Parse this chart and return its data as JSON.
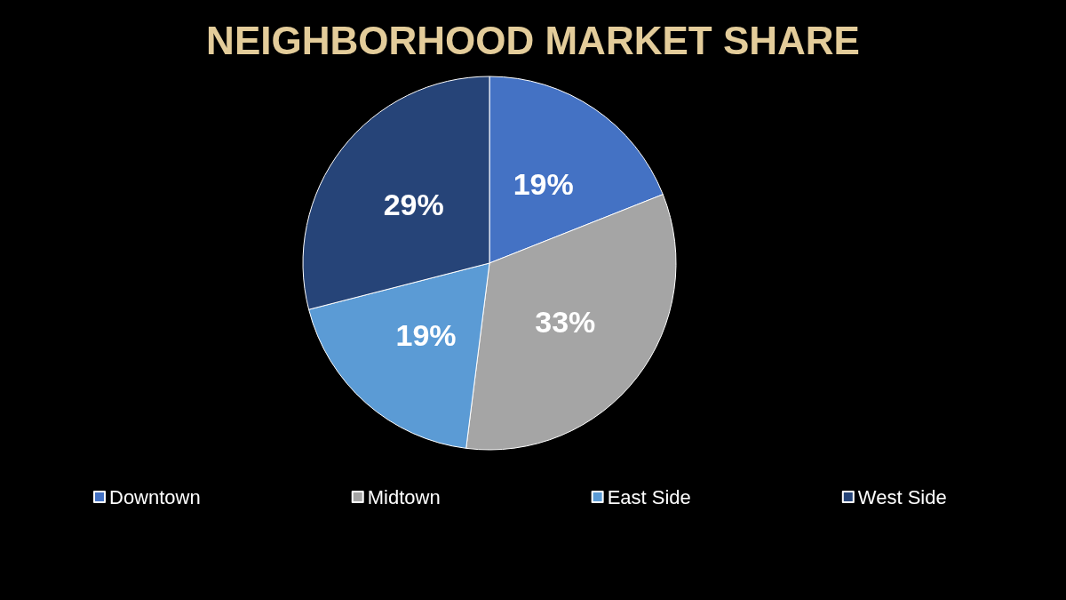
{
  "chart_data": {
    "type": "pie",
    "title": "NEIGHBORHOOD MARKET SHARE",
    "categories": [
      "Downtown",
      "Midtown",
      "East Side",
      "West Side"
    ],
    "values": [
      19,
      33,
      19,
      29
    ],
    "colors": [
      "#4472c4",
      "#a5a5a5",
      "#5b9bd5",
      "#264478"
    ],
    "value_labels": [
      "19%",
      "33%",
      "19%",
      "29%"
    ],
    "legend": "bottom"
  }
}
